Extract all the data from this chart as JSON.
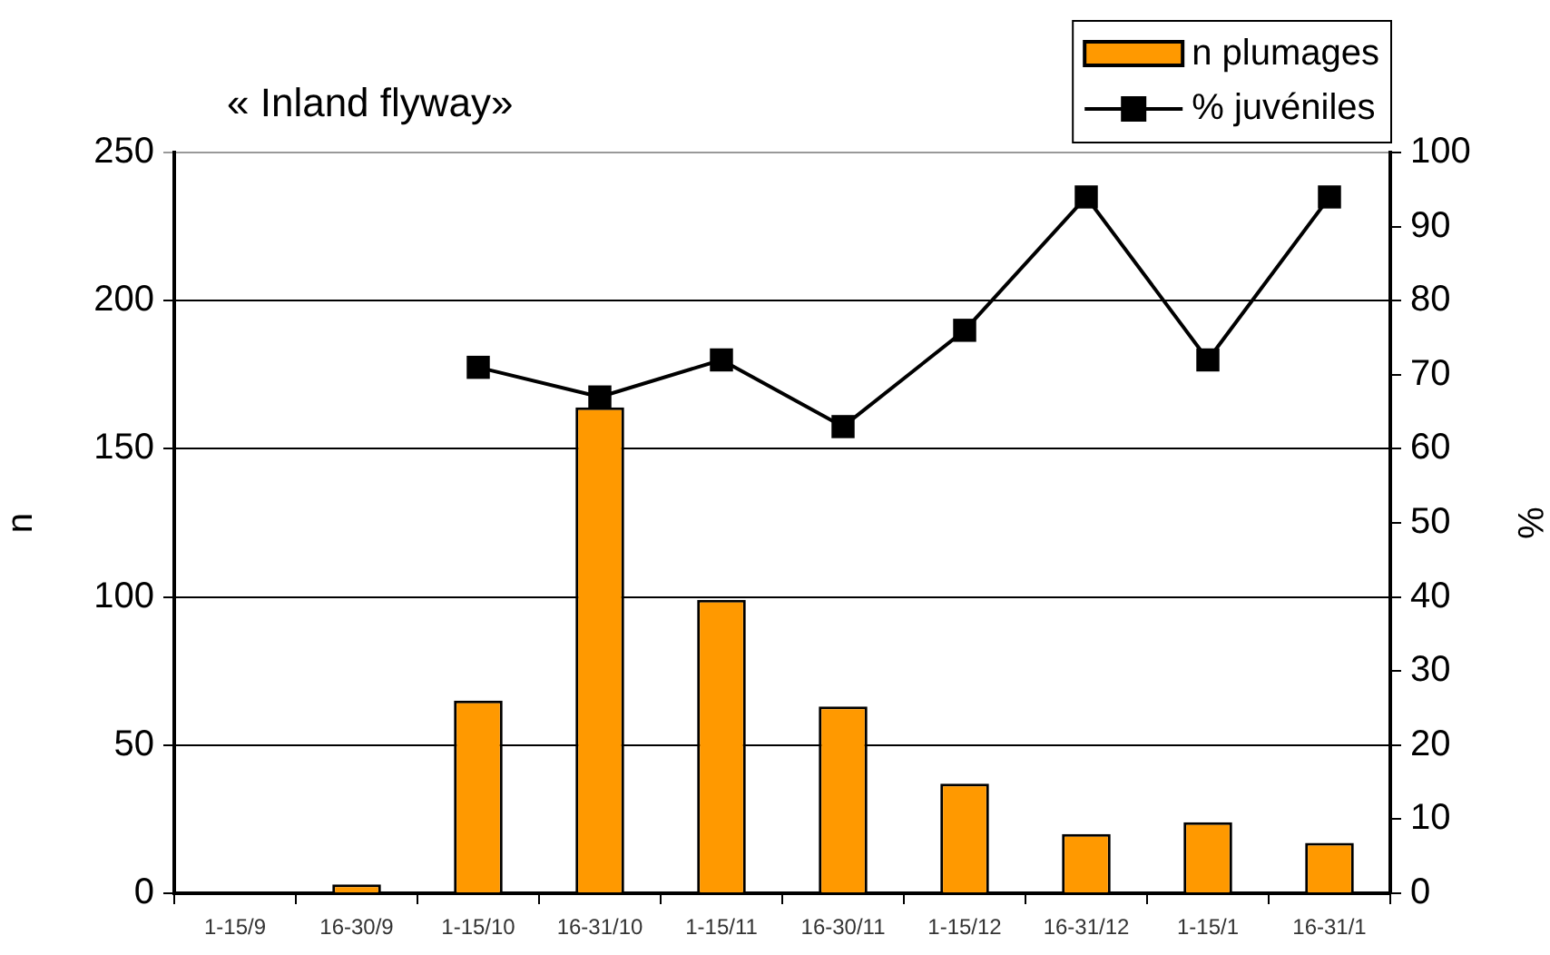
{
  "chart_data": {
    "type": "bar",
    "title": "« Inland flyway»",
    "categories": [
      "1-15/9",
      "16-30/9",
      "1-15/10",
      "16-31/10",
      "1-15/11",
      "16-30/11",
      "1-15/12",
      "16-31/12",
      "1-15/1",
      "16-31/1"
    ],
    "ylabel": "n",
    "y2label": "%",
    "ylim": [
      0,
      250
    ],
    "yticks": [
      0,
      50,
      100,
      150,
      200,
      250
    ],
    "y2lim": [
      0,
      100
    ],
    "y2ticks": [
      0,
      10,
      20,
      30,
      40,
      50,
      60,
      70,
      80,
      90,
      100
    ],
    "grid": "y",
    "legend": "top right",
    "series": [
      {
        "name": "n plumages",
        "color": "#ff9900",
        "values": [
          0,
          3,
          65,
          164,
          99,
          63,
          37,
          20,
          24,
          17
        ]
      },
      {
        "name": "% juvéniles",
        "type": "line",
        "axis": "y2",
        "color": "#000000",
        "marker": "square",
        "values": [
          null,
          null,
          71,
          67,
          72,
          63,
          76,
          94,
          72,
          94
        ]
      }
    ]
  }
}
